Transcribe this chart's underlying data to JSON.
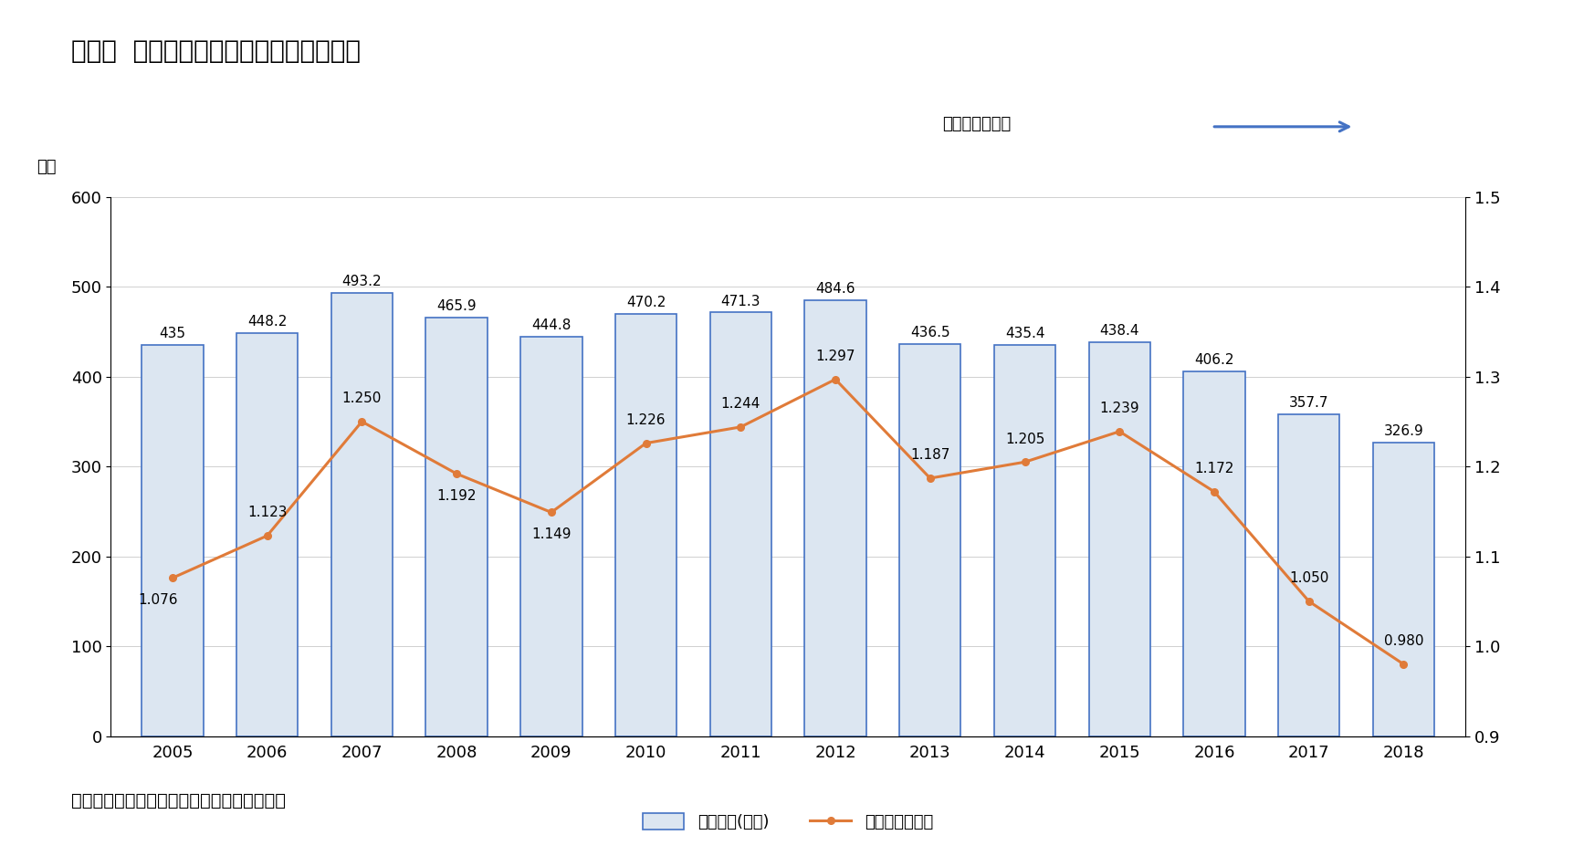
{
  "title": "図表５  韓国における最新の出生率の動向",
  "years": [
    2005,
    2006,
    2007,
    2008,
    2009,
    2010,
    2011,
    2012,
    2013,
    2014,
    2015,
    2016,
    2017,
    2018
  ],
  "births": [
    435,
    448.2,
    493.2,
    465.9,
    444.8,
    470.2,
    471.3,
    484.6,
    436.5,
    435.4,
    438.4,
    406.2,
    357.7,
    326.9
  ],
  "tfr": [
    1.076,
    1.123,
    1.25,
    1.192,
    1.149,
    1.226,
    1.244,
    1.297,
    1.187,
    1.205,
    1.239,
    1.172,
    1.05,
    0.98
  ],
  "bar_face_color": "#dce6f1",
  "bar_edge_color": "#4472c4",
  "line_color": "#e07b39",
  "ylim_left": [
    0,
    600
  ],
  "ylim_right": [
    0.9,
    1.5
  ],
  "yticks_left": [
    0,
    100,
    200,
    300,
    400,
    500,
    600
  ],
  "yticks_right": [
    0.9,
    1.0,
    1.1,
    1.2,
    1.3,
    1.4,
    1.5
  ],
  "ylabel_left": "千人",
  "arrow_label": "合計特殊出生率",
  "source_text": "資料）韓国統計庁ホームページより筆者作成",
  "legend_bar_label": "出生児数(千人)",
  "legend_line_label": "合計特殊出生率",
  "background_color": "#ffffff",
  "title_fontsize": 20,
  "label_fontsize": 13,
  "tick_fontsize": 13,
  "annotation_fontsize": 11,
  "arrow_color": "#4472c4",
  "source_fontsize": 14
}
